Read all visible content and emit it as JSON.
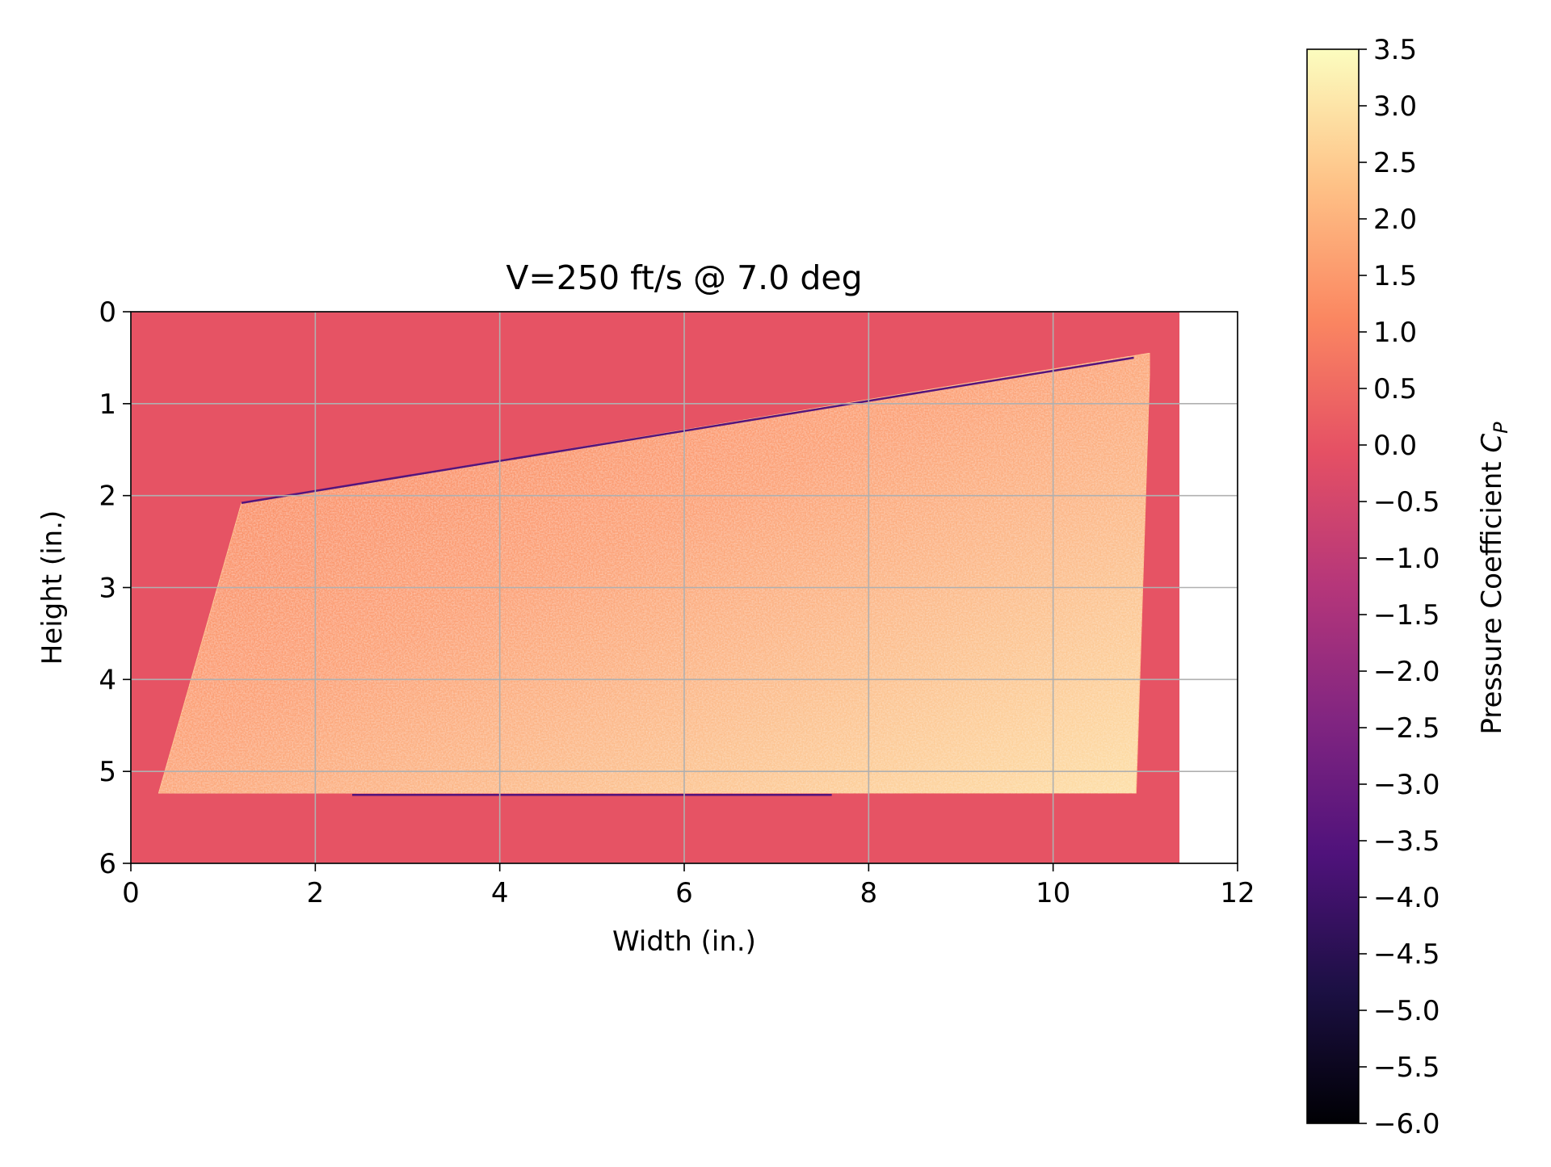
{
  "chart_data": {
    "type": "heatmap",
    "title": "V=250 ft/s @ 7.0 deg",
    "xlabel": "Width (in.)",
    "ylabel": "Height (in.)",
    "xlim": [
      0,
      12
    ],
    "ylim": [
      6,
      0
    ],
    "x_ticks": [
      "0",
      "2",
      "4",
      "6",
      "8",
      "10",
      "12"
    ],
    "y_ticks": [
      "0",
      "1",
      "2",
      "3",
      "4",
      "5",
      "6"
    ],
    "grid": true,
    "image_extent": {
      "x": [
        0,
        11.37
      ],
      "y": [
        0,
        6
      ]
    },
    "background_value": 0.0,
    "surface_outline": [
      [
        1.2,
        2.08
      ],
      [
        11.05,
        0.45
      ],
      [
        11.05,
        0.55
      ],
      [
        10.9,
        5.24
      ],
      [
        0.3,
        5.24
      ]
    ],
    "surface_value_range": [
      1.0,
      3.0
    ],
    "leading_edge_value": -3.5,
    "colorbar": {
      "label": "Pressure Coefficient C_P",
      "label_main": "Pressure Coefficient ",
      "label_symbol": "C",
      "label_subscript": "P",
      "colormap": "magma",
      "range": [
        -6.0,
        3.5
      ],
      "ticks": [
        "3.5",
        "3.0",
        "2.5",
        "2.0",
        "1.5",
        "1.0",
        "0.5",
        "0.0",
        "−0.5",
        "−1.0",
        "−1.5",
        "−2.0",
        "−2.5",
        "−3.0",
        "−3.5",
        "−4.0",
        "−4.5",
        "−5.0",
        "−5.5",
        "−6.0"
      ],
      "tick_values": [
        3.5,
        3.0,
        2.5,
        2.0,
        1.5,
        1.0,
        0.5,
        0.0,
        -0.5,
        -1.0,
        -1.5,
        -2.0,
        -2.5,
        -3.0,
        -3.5,
        -4.0,
        -4.5,
        -5.0,
        -5.5,
        -6.0
      ],
      "colors": {
        "stops": [
          "#000004",
          "#1c1044",
          "#4f127b",
          "#812581",
          "#b5367a",
          "#e55064",
          "#fb8761",
          "#fec287",
          "#fcfdbf"
        ]
      }
    }
  }
}
